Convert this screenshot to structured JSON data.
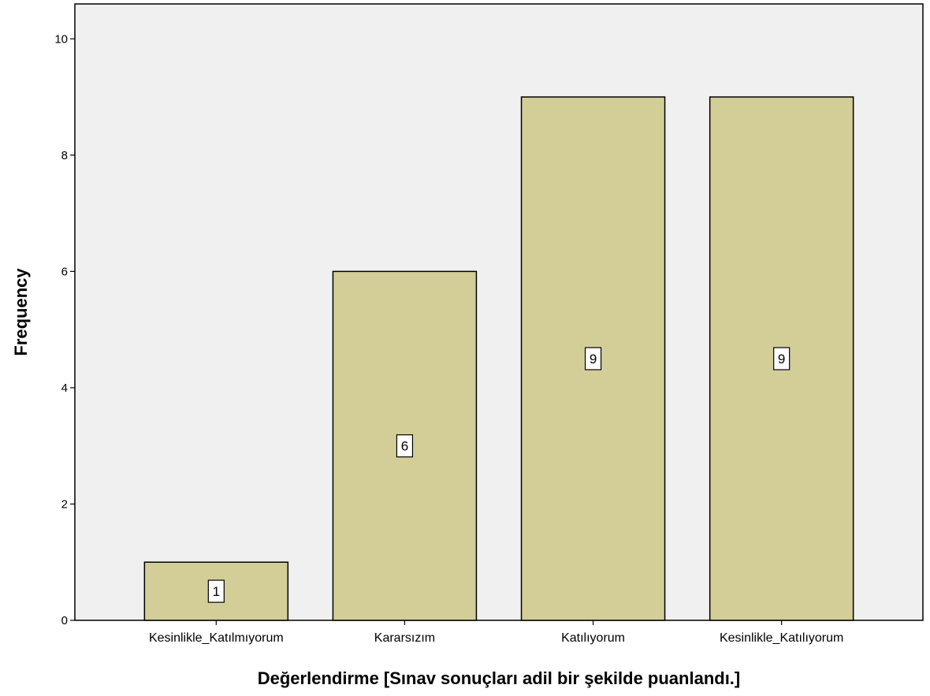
{
  "chart_data": {
    "type": "bar",
    "categories": [
      "Kesinlikle_Katılmıyorum",
      "Kararsızım",
      "Katılıyorum",
      "Kesinlikle_Katılıyorum"
    ],
    "values": [
      1,
      6,
      9,
      9
    ],
    "data_labels": [
      "1",
      "6",
      "9",
      "9"
    ],
    "xlabel": "Değerlendirme [Sınav sonuçları adil bir şekilde puanlandı.]",
    "ylabel": "Frequency",
    "ylim": [
      0,
      10.6
    ],
    "yticks": [
      0,
      2,
      4,
      6,
      8,
      10
    ],
    "ytick_labels": [
      "0",
      "2",
      "4",
      "6",
      "8",
      "10"
    ],
    "grid": false,
    "colors": {
      "plot_background": "#f0f0f0",
      "bar_fill": "#d3ce97",
      "bar_stroke": "#000000"
    }
  }
}
